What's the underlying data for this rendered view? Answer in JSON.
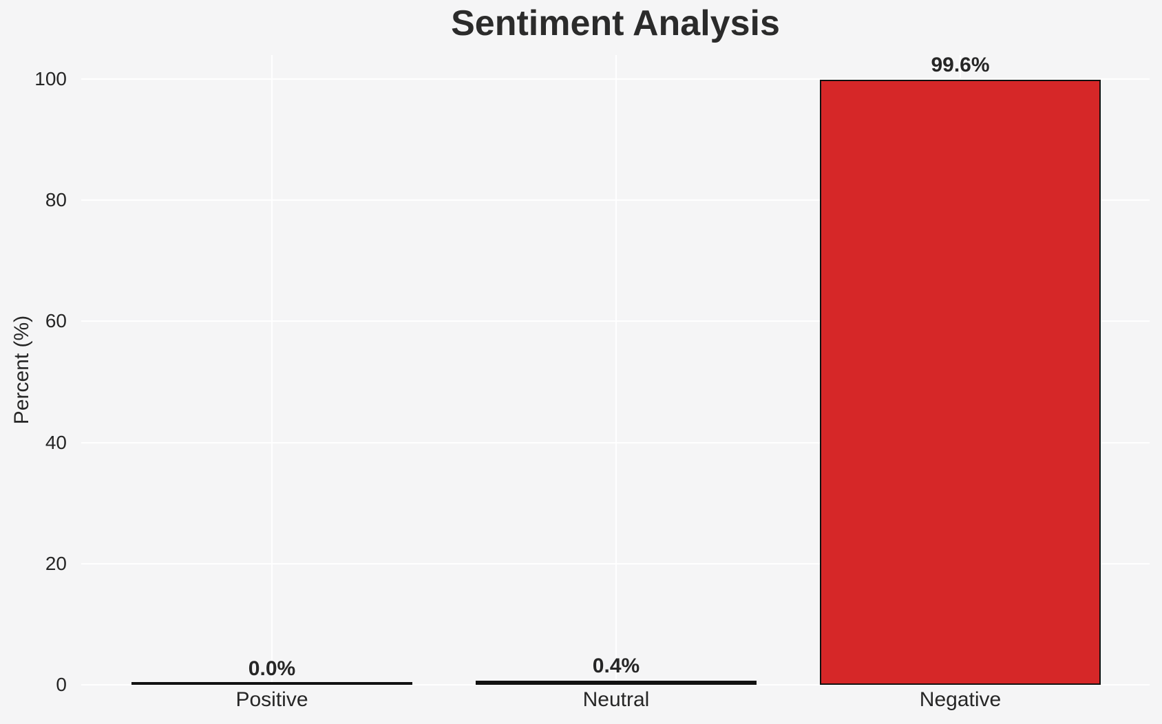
{
  "colors": {
    "background": "#f5f5f6",
    "grid": "#ffffff",
    "text": "#262626",
    "bar_edge": "#111111",
    "negative_fill": "#d62728"
  },
  "chart_data": {
    "type": "bar",
    "title": "Sentiment Analysis",
    "xlabel": "",
    "ylabel": "Percent (%)",
    "categories": [
      "Positive",
      "Neutral",
      "Negative"
    ],
    "values": [
      0.0,
      0.4,
      99.6
    ],
    "value_labels": [
      "0.0%",
      "0.4%",
      "99.6%"
    ],
    "bar_fills": [
      null,
      null,
      "#d62728"
    ],
    "yticks": [
      0,
      20,
      40,
      60,
      80,
      100
    ],
    "ylim": [
      0,
      104
    ],
    "grid": "both-white-on-gray",
    "legend": "none"
  }
}
